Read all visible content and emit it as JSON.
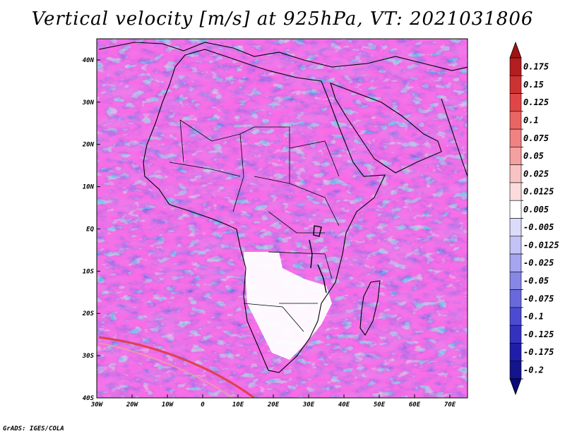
{
  "title": "Vertical velocity [m/s] at 925hPa, VT: 2021031806",
  "footer": "GrADS: IGES/COLA",
  "map": {
    "lon_labels": [
      "30W",
      "20W",
      "10W",
      "0",
      "10E",
      "20E",
      "30E",
      "40E",
      "50E",
      "60E",
      "70E"
    ],
    "lat_labels": [
      "40N",
      "30N",
      "20N",
      "10N",
      "EQ",
      "10S",
      "20S",
      "30S",
      "40S"
    ],
    "lon_range": [
      -30,
      75
    ],
    "lat_range": [
      -40,
      45
    ]
  },
  "colorbar": {
    "labels": [
      "0.175",
      "0.15",
      "0.125",
      "0.1",
      "0.075",
      "0.05",
      "0.025",
      "0.0125",
      "0.005",
      "-0.005",
      "-0.0125",
      "-0.025",
      "-0.05",
      "-0.075",
      "-0.1",
      "-0.125",
      "-0.175",
      "-0.2"
    ],
    "colors": [
      "#b41e1e",
      "#cd3232",
      "#e14646",
      "#eb6464",
      "#f08282",
      "#f5a0a0",
      "#f8c3c3",
      "#fbdcdc",
      "#ffffff",
      "#dcdcfa",
      "#c3c3f5",
      "#a5a5f0",
      "#8787e6",
      "#6969dc",
      "#4b4bd2",
      "#3232be",
      "#1e1eaa",
      "#14148c"
    ],
    "top_arrow_color": "#a01414",
    "bottom_arrow_color": "#0a0a78"
  }
}
